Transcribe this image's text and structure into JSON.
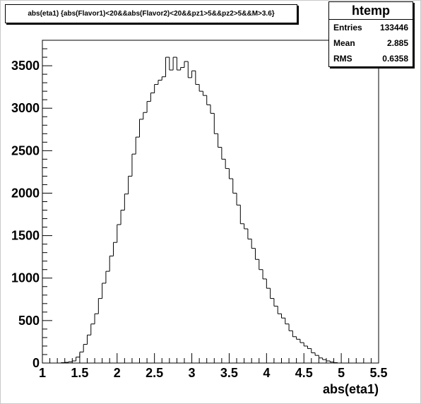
{
  "title": "abs(eta1) {abs(Flavor1)<20&&abs(Flavor2)<20&&pz1>5&&pz2>5&&M>3.6}",
  "stats": {
    "name": "htemp",
    "rows": [
      {
        "label": "Entries",
        "value": "133446"
      },
      {
        "label": "Mean",
        "value": "2.885"
      },
      {
        "label": "RMS",
        "value": "0.6358"
      }
    ]
  },
  "chart_data": {
    "type": "histogram",
    "title": "abs(eta1) {abs(Flavor1)<20&&abs(Flavor2)<20&&pz1>5&&pz2>5&&M>3.6}",
    "xlabel": "abs(eta1)",
    "ylabel": "",
    "xlim": [
      1,
      5.5
    ],
    "ylim": [
      0,
      3800
    ],
    "bin_width": 0.05,
    "x_ticks": [
      "1",
      "1.5",
      "2",
      "2.5",
      "3",
      "3.5",
      "4",
      "4.5",
      "5",
      "5.5"
    ],
    "y_ticks": [
      "0",
      "500",
      "1000",
      "1500",
      "2000",
      "2500",
      "3000",
      "3500"
    ],
    "x_tick_values": [
      1,
      1.5,
      2,
      2.5,
      3,
      3.5,
      4,
      4.5,
      5,
      5.5
    ],
    "y_tick_values": [
      0,
      500,
      1000,
      1500,
      2000,
      2500,
      3000,
      3500
    ],
    "bins_low": [
      1.25,
      1.3,
      1.35,
      1.4,
      1.45,
      1.5,
      1.55,
      1.6,
      1.65,
      1.7,
      1.75,
      1.8,
      1.85,
      1.9,
      1.95,
      2.0,
      2.05,
      2.1,
      2.15,
      2.2,
      2.25,
      2.3,
      2.35,
      2.4,
      2.45,
      2.5,
      2.55,
      2.6,
      2.65,
      2.7,
      2.75,
      2.8,
      2.85,
      2.9,
      2.95,
      3.0,
      3.05,
      3.1,
      3.15,
      3.2,
      3.25,
      3.3,
      3.35,
      3.4,
      3.45,
      3.5,
      3.55,
      3.6,
      3.65,
      3.7,
      3.75,
      3.8,
      3.85,
      3.9,
      3.95,
      4.0,
      4.05,
      4.1,
      4.15,
      4.2,
      4.25,
      4.3,
      4.35,
      4.4,
      4.45,
      4.5,
      4.55,
      4.6,
      4.65,
      4.7,
      4.75,
      4.8,
      4.85,
      4.9
    ],
    "values": [
      5,
      8,
      15,
      25,
      70,
      130,
      220,
      330,
      460,
      580,
      760,
      940,
      1080,
      1260,
      1420,
      1630,
      1800,
      1990,
      2200,
      2460,
      2660,
      2870,
      2950,
      3080,
      3180,
      3280,
      3330,
      3370,
      3600,
      3450,
      3600,
      3450,
      3480,
      3550,
      3360,
      3440,
      3280,
      3200,
      3150,
      3040,
      2940,
      2700,
      2540,
      2400,
      2290,
      2170,
      2000,
      1860,
      1640,
      1580,
      1460,
      1350,
      1220,
      1100,
      990,
      880,
      760,
      670,
      580,
      530,
      460,
      380,
      310,
      280,
      240,
      200,
      170,
      120,
      90,
      60,
      40,
      25,
      12,
      5
    ]
  }
}
